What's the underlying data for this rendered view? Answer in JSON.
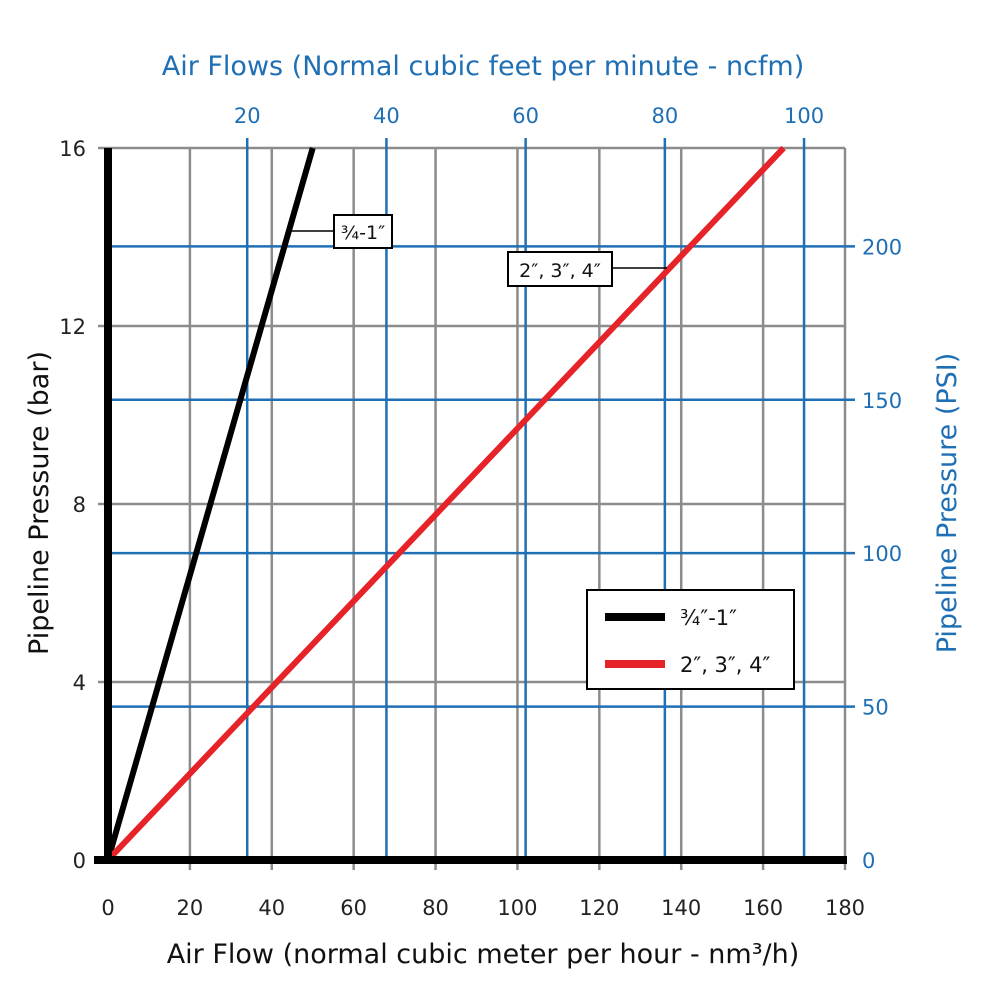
{
  "chart_data": {
    "type": "line",
    "xlabel": "Air Flow (normal cubic meter per hour - nm³/h)",
    "ylabel": "Pipeline Pressure (bar)",
    "x2label": "Air Flows (Normal cubic feet per minute - ncfm)",
    "y2label": "Pipeline Pressure (PSI)",
    "xlim": [
      0,
      180
    ],
    "ylim": [
      0,
      16
    ],
    "x_ticks": [
      "0",
      "20",
      "40",
      "60",
      "80",
      "100",
      "120",
      "140",
      "160",
      "180"
    ],
    "y_ticks": [
      "0",
      "4",
      "8",
      "12",
      "16"
    ],
    "x2_ticks": [
      "20",
      "40",
      "60",
      "80",
      "100"
    ],
    "y2_ticks": [
      "0",
      "50",
      "100",
      "150",
      "200"
    ],
    "grid": true,
    "legend_position": "bottom-right",
    "colors": {
      "primary_grid": "#8c8c8c",
      "secondary_grid": "#1f6fb4",
      "series_1": "#000000",
      "series_2": "#e52329"
    },
    "series": [
      {
        "name": "¾″-1″",
        "label": "¾-1″",
        "color": "#000000",
        "x": [
          0,
          50
        ],
        "y": [
          0,
          16
        ]
      },
      {
        "name": "2″, 3″, 4″",
        "label": "2″, 3″, 4″",
        "color": "#e52329",
        "x": [
          0,
          165
        ],
        "y": [
          0,
          16
        ]
      }
    ]
  }
}
